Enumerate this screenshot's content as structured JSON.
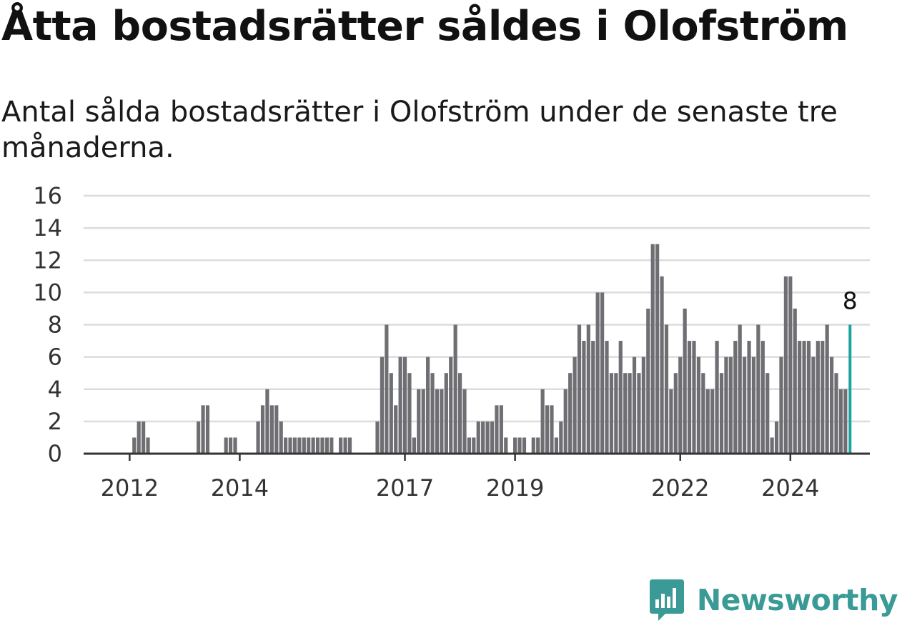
{
  "header": {
    "title": "Åtta bostadsrätter såldes i Olofström",
    "subtitle": "Antal sålda bostadsrätter i Olofström under de senaste tre månaderna."
  },
  "brand": {
    "name": "Newsworthy"
  },
  "colors": {
    "bar": "#6f6e73",
    "highlight": "#1fa39f",
    "grid": "#dcdcdc",
    "axis": "#333333",
    "brand": "#3a9a96"
  },
  "chart_data": {
    "type": "bar",
    "ylim": [
      0,
      16
    ],
    "yticks": [
      0,
      2,
      4,
      6,
      8,
      10,
      12,
      14,
      16
    ],
    "xtick_labels": [
      {
        "label": "2012",
        "index": 2
      },
      {
        "label": "2014",
        "index": 26
      },
      {
        "label": "2017",
        "index": 62
      },
      {
        "label": "2019",
        "index": 86
      },
      {
        "label": "2022",
        "index": 122
      },
      {
        "label": "2024",
        "index": 146
      }
    ],
    "highlight_label": "8",
    "values": [
      0,
      0,
      0,
      1,
      2,
      2,
      1,
      0,
      0,
      0,
      0,
      0,
      0,
      0,
      0,
      0,
      0,
      2,
      3,
      3,
      0,
      0,
      0,
      1,
      1,
      1,
      0,
      0,
      0,
      0,
      2,
      3,
      4,
      3,
      3,
      2,
      1,
      1,
      1,
      1,
      1,
      1,
      1,
      1,
      1,
      1,
      1,
      0,
      1,
      1,
      1,
      0,
      0,
      0,
      0,
      0,
      2,
      6,
      8,
      5,
      3,
      6,
      6,
      5,
      1,
      4,
      4,
      6,
      5,
      4,
      4,
      5,
      6,
      8,
      5,
      4,
      1,
      1,
      2,
      2,
      2,
      2,
      3,
      3,
      1,
      0,
      1,
      1,
      1,
      0,
      1,
      1,
      4,
      3,
      3,
      1,
      2,
      4,
      5,
      6,
      8,
      7,
      8,
      7,
      10,
      10,
      7,
      5,
      5,
      7,
      5,
      5,
      6,
      5,
      6,
      9,
      13,
      13,
      11,
      8,
      4,
      5,
      6,
      9,
      7,
      7,
      6,
      5,
      4,
      4,
      7,
      5,
      6,
      6,
      7,
      8,
      6,
      7,
      6,
      8,
      7,
      5,
      1,
      2,
      6,
      11,
      11,
      9,
      7,
      7,
      7,
      6,
      7,
      7,
      8,
      6,
      5,
      4,
      4,
      8
    ]
  }
}
